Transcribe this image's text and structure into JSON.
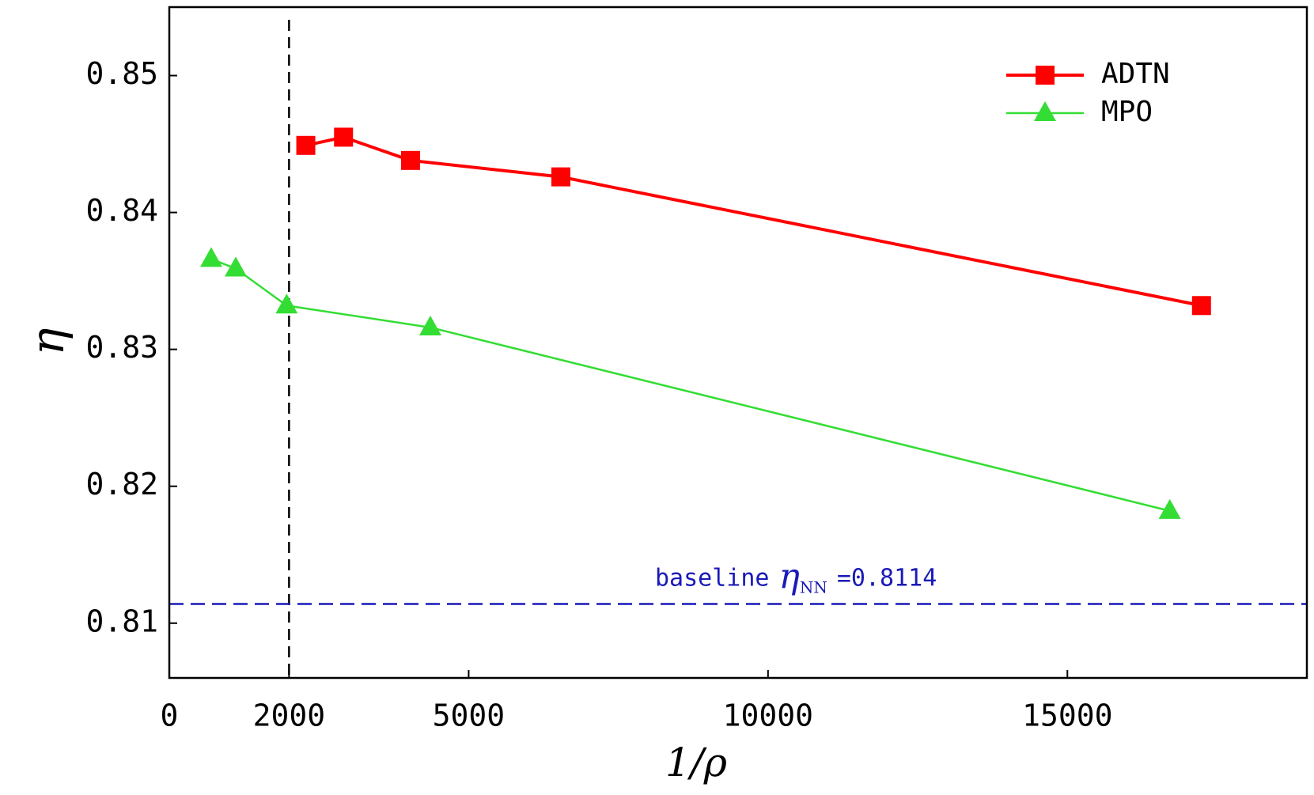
{
  "chart_data": {
    "type": "line",
    "x_label": "1/ρ",
    "y_label": "η",
    "xlim": [
      0,
      19000
    ],
    "ylim": [
      0.806,
      0.855
    ],
    "xticks": [
      0,
      2000,
      5000,
      10000,
      15000
    ],
    "yticks": [
      0.81,
      0.82,
      0.83,
      0.84,
      0.85
    ],
    "legend": "upper right",
    "series": [
      {
        "name": "ADTN",
        "color": "#ff0000",
        "marker": "square",
        "line_width": 4,
        "x": [
          2280,
          2910,
          4030,
          6540,
          17240
        ],
        "values": [
          0.8449,
          0.8455,
          0.8438,
          0.8426,
          0.8332
        ]
      },
      {
        "name": "MPO",
        "color": "#33dd33",
        "marker": "triangle",
        "line_width": 2.5,
        "x": [
          700,
          1110,
          1960,
          4360,
          16710
        ],
        "values": [
          0.8366,
          0.8359,
          0.8332,
          0.8316,
          0.8182
        ]
      }
    ],
    "reference_lines": [
      {
        "axis": "x",
        "value": 2000,
        "color": "#000000"
      },
      {
        "axis": "y",
        "value": 0.8114,
        "color": "#1a1ab8",
        "label": {
          "text": "baseline",
          "symbol": "η",
          "subscript": "NN",
          "suffix": "=0.8114"
        }
      }
    ]
  }
}
